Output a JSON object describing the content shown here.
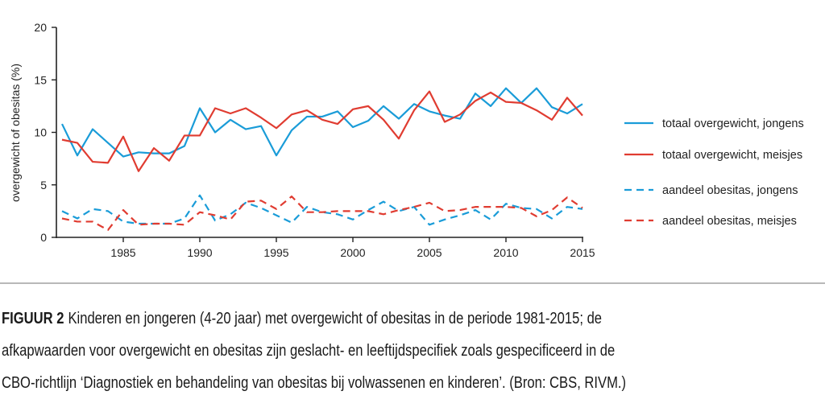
{
  "chart_data": {
    "type": "line",
    "title": "",
    "xlabel": "",
    "ylabel": "overgewicht of obesitas (%)",
    "xlim": [
      1981,
      2015
    ],
    "ylim": [
      0,
      20
    ],
    "xticks": [
      1985,
      1990,
      1995,
      2000,
      2005,
      2010,
      2015
    ],
    "yticks": [
      0,
      5,
      10,
      15,
      20
    ],
    "grid": false,
    "legend_position": "right",
    "x": [
      1981,
      1982,
      1983,
      1984,
      1985,
      1986,
      1987,
      1988,
      1989,
      1990,
      1991,
      1992,
      1993,
      1994,
      1995,
      1996,
      1997,
      1998,
      1999,
      2000,
      2001,
      2002,
      2003,
      2004,
      2005,
      2006,
      2007,
      2008,
      2009,
      2010,
      2011,
      2012,
      2013,
      2014,
      2015
    ],
    "series": [
      {
        "name": "totaal overgewicht, jongens",
        "color": "#1a9cd8",
        "style": "solid",
        "values": [
          10.8,
          7.8,
          10.3,
          9.0,
          7.7,
          8.1,
          8.0,
          8.0,
          8.7,
          12.3,
          10.0,
          11.2,
          10.3,
          10.6,
          7.8,
          10.2,
          11.5,
          11.5,
          12.0,
          10.5,
          11.1,
          12.5,
          11.3,
          12.7,
          12.0,
          11.6,
          11.3,
          13.7,
          12.5,
          14.2,
          12.8,
          14.2,
          12.4,
          11.8,
          12.7
        ]
      },
      {
        "name": "totaal overgewicht, meisjes",
        "color": "#e03c31",
        "style": "solid",
        "values": [
          9.3,
          9.0,
          7.2,
          7.1,
          9.6,
          6.3,
          8.5,
          7.3,
          9.7,
          9.7,
          12.3,
          11.8,
          12.3,
          11.4,
          10.4,
          11.7,
          12.1,
          11.2,
          10.8,
          12.2,
          12.5,
          11.2,
          9.4,
          12.1,
          13.9,
          11.0,
          11.7,
          13.0,
          13.8,
          12.9,
          12.8,
          12.1,
          11.2,
          13.3,
          11.6
        ]
      },
      {
        "name": "aandeel obesitas, jongens",
        "color": "#1a9cd8",
        "style": "dashed",
        "values": [
          2.5,
          1.8,
          2.7,
          2.5,
          1.5,
          1.3,
          1.3,
          1.3,
          1.8,
          4.0,
          1.6,
          2.2,
          3.3,
          2.8,
          2.1,
          1.4,
          2.9,
          2.4,
          2.2,
          1.7,
          2.6,
          3.4,
          2.5,
          2.9,
          1.2,
          1.7,
          2.1,
          2.6,
          1.7,
          3.2,
          2.8,
          2.7,
          1.8,
          2.9,
          2.7
        ]
      },
      {
        "name": "aandeel obesitas, meisjes",
        "color": "#e03c31",
        "style": "dashed",
        "values": [
          1.8,
          1.5,
          1.5,
          0.7,
          2.6,
          1.2,
          1.3,
          1.3,
          1.2,
          2.4,
          2.1,
          1.7,
          3.4,
          3.5,
          2.7,
          3.9,
          2.4,
          2.4,
          2.5,
          2.5,
          2.5,
          2.2,
          2.6,
          2.9,
          3.3,
          2.5,
          2.6,
          2.9,
          2.9,
          2.9,
          2.8,
          2.0,
          2.6,
          3.8,
          2.8
        ]
      }
    ]
  },
  "caption": {
    "label": "FIGUUR 2",
    "line1": "Kinderen en jongeren (4-20 jaar) met overgewicht of obesitas in de periode 1981-2015; de",
    "line2": "afkapwaarden voor overgewicht en obesitas zijn geslacht- en leeftijdspecifiek zoals gespecificeerd in de",
    "line3": "CBO-richtlijn ‘Diagnostiek en behandeling van obesitas bij volwassenen en kinderen’. (Bron: CBS, RIVM.)"
  }
}
